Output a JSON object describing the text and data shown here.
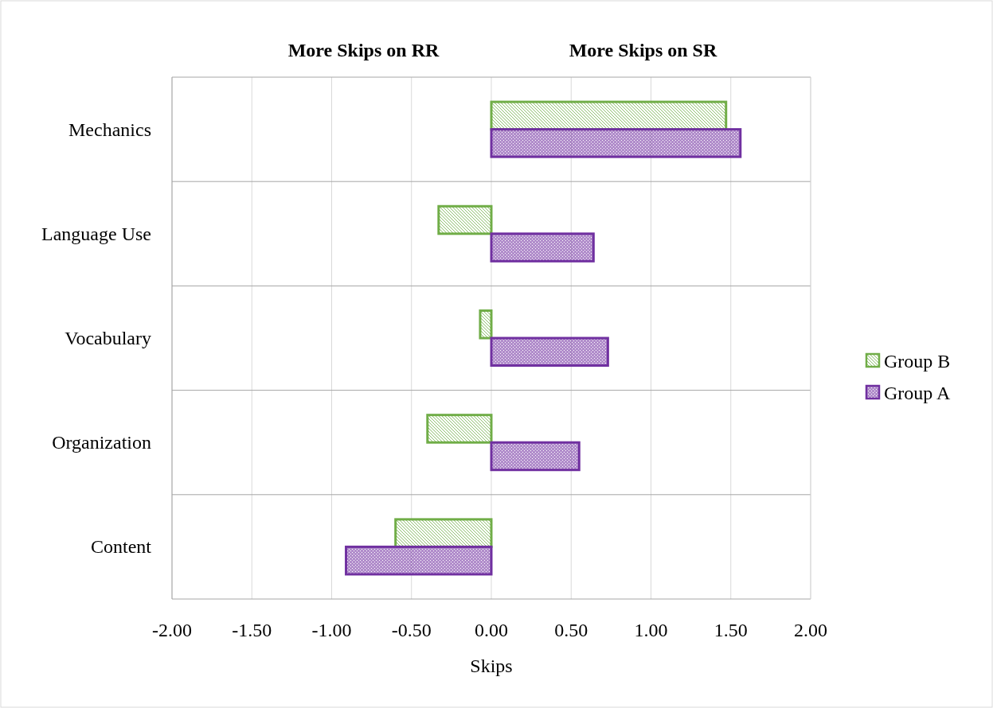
{
  "chart_data": {
    "type": "bar",
    "orientation": "horizontal",
    "xlabel": "Skips",
    "annotations": [
      "More Skips on RR",
      "More Skips on SR"
    ],
    "categories": [
      "Mechanics",
      "Language Use",
      "Vocabulary",
      "Organization",
      "Content"
    ],
    "series": [
      {
        "name": "Group B",
        "color": "#70ad47",
        "values": [
          1.47,
          -0.33,
          -0.07,
          -0.4,
          -0.6
        ]
      },
      {
        "name": "Group A",
        "color": "#7030a0",
        "values": [
          1.56,
          0.64,
          0.73,
          0.55,
          -0.91
        ]
      }
    ],
    "xlim": [
      -2,
      2
    ],
    "xticks": [
      {
        "value": -2,
        "label": "-2.00"
      },
      {
        "value": -1.5,
        "label": "-1.50"
      },
      {
        "value": -1,
        "label": "-1.00"
      },
      {
        "value": -0.5,
        "label": "-0.50"
      },
      {
        "value": 0,
        "label": "0.00"
      },
      {
        "value": 0.5,
        "label": "0.50"
      },
      {
        "value": 1,
        "label": "1.00"
      },
      {
        "value": 1.5,
        "label": "1.50"
      },
      {
        "value": 2,
        "label": "2.00"
      }
    ],
    "grid": true,
    "legend": "right"
  }
}
